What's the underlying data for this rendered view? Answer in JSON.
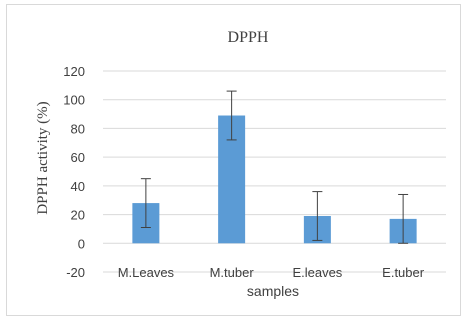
{
  "chart_data": {
    "type": "bar",
    "title": "DPPH",
    "xlabel": "samples",
    "ylabel": "DPPH activity (%)",
    "categories": [
      "M.Leaves",
      "M.tuber",
      "E.leaves",
      "E.tuber"
    ],
    "values": [
      28,
      89,
      19,
      17
    ],
    "error": [
      17,
      17,
      17,
      17
    ],
    "ylim": [
      -20,
      120
    ],
    "yticks": [
      -20,
      0,
      20,
      40,
      60,
      80,
      100,
      120
    ],
    "ytick_labels": [
      "-20",
      "0",
      "20",
      "40",
      "60",
      "80",
      "100",
      "120"
    ],
    "grid": true,
    "legend": "none",
    "bar_color": "#5B9BD5",
    "grid_color": "#d9d9d9",
    "text_color": "#404040",
    "errorbar_color": "#404040"
  }
}
